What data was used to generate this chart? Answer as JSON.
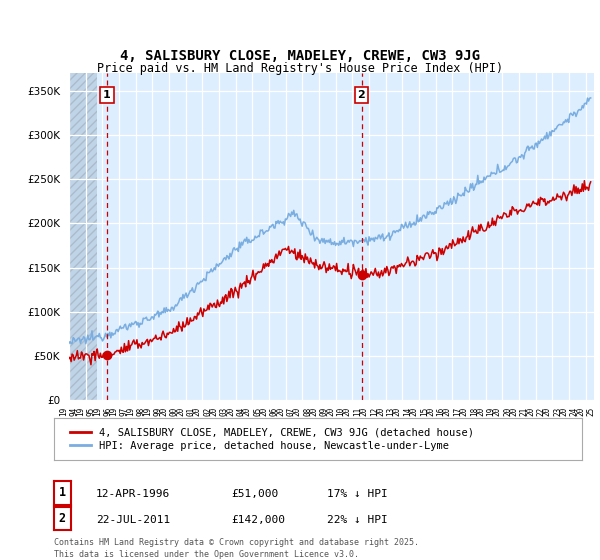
{
  "title": "4, SALISBURY CLOSE, MADELEY, CREWE, CW3 9JG",
  "subtitle": "Price paid vs. HM Land Registry's House Price Index (HPI)",
  "ylim": [
    0,
    370000
  ],
  "xlim_start": 1994.0,
  "xlim_end": 2025.5,
  "hpi_color": "#7aade0",
  "price_color": "#cc0000",
  "annotation1_date": 1996.28,
  "annotation1_price": 51000,
  "annotation2_date": 2011.55,
  "annotation2_price": 142000,
  "legend_entry1": "4, SALISBURY CLOSE, MADELEY, CREWE, CW3 9JG (detached house)",
  "legend_entry2": "HPI: Average price, detached house, Newcastle-under-Lyme",
  "copyright": "Contains HM Land Registry data © Crown copyright and database right 2025.\nThis data is licensed under the Open Government Licence v3.0.",
  "bg_color": "#ddeeff",
  "hatch_end": 1995.7
}
